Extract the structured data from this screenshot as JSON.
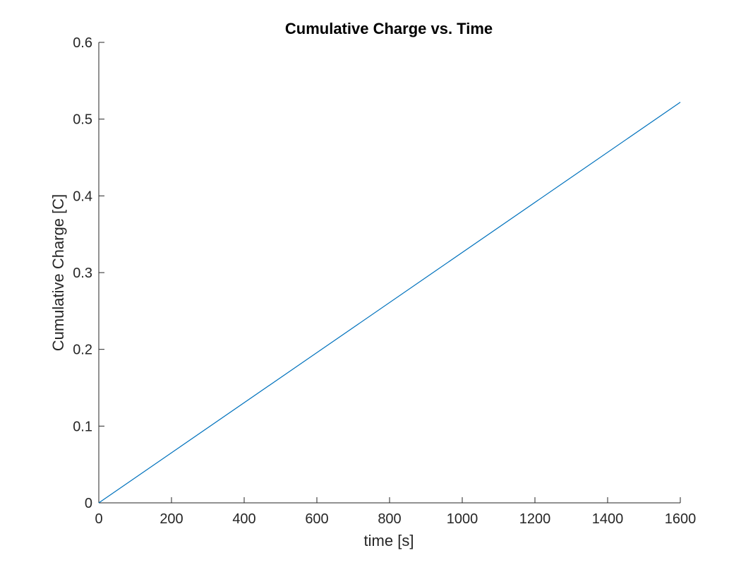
{
  "chart_data": {
    "type": "line",
    "title": "Cumulative Charge vs. Time",
    "xlabel": "time [s]",
    "ylabel": "Cumulative Charge [C]",
    "xlim": [
      0,
      1600
    ],
    "ylim": [
      0,
      0.6
    ],
    "xticks": [
      0,
      200,
      400,
      600,
      800,
      1000,
      1200,
      1400,
      1600
    ],
    "xtick_labels": [
      "0",
      "200",
      "400",
      "600",
      "800",
      "1000",
      "1200",
      "1400",
      "1600"
    ],
    "yticks": [
      0,
      0.1,
      0.2,
      0.3,
      0.4,
      0.5,
      0.6
    ],
    "ytick_labels": [
      "0",
      "0.1",
      "0.2",
      "0.3",
      "0.4",
      "0.5",
      "0.6"
    ],
    "grid": false,
    "axis_color": "#262626",
    "series": [
      {
        "color": "#0072BD",
        "x": [
          0,
          1600
        ],
        "y": [
          0,
          0.522
        ]
      }
    ]
  }
}
